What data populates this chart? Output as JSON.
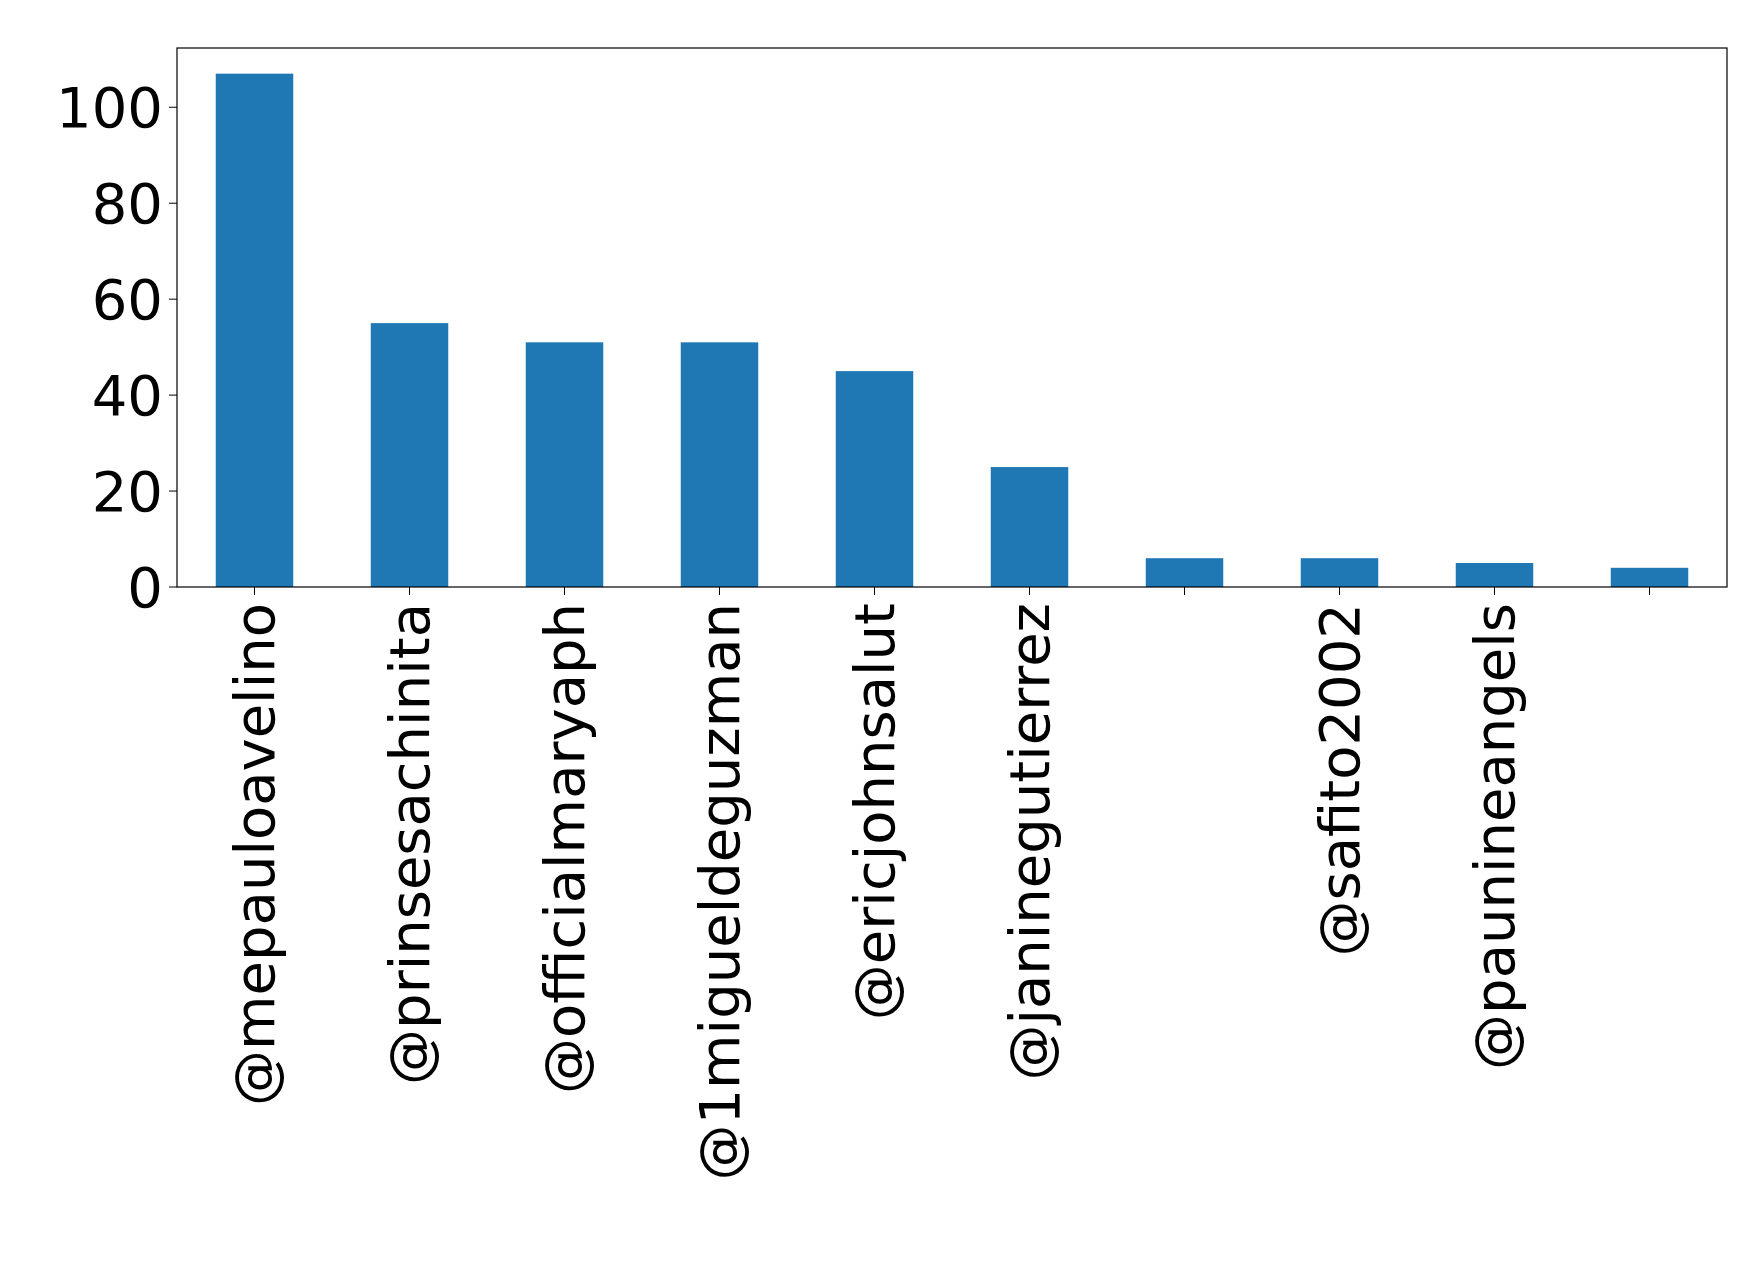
{
  "chart_data": {
    "type": "bar",
    "categories": [
      "@mepauloavelino",
      "@prinsesachinita",
      "@officialmaryaph",
      "@1migueldeguzman",
      "@ericjohnsalut",
      "@janinegutierrez",
      null,
      "@safito2002",
      "@paunineangels",
      null
    ],
    "values": [
      107,
      55,
      51,
      51,
      45,
      25,
      6,
      6,
      5,
      4
    ],
    "color": "#1f77b4",
    "ylim": [
      0,
      112.35
    ],
    "yticks": [
      0,
      20,
      40,
      60,
      80,
      100
    ],
    "grid": false
  }
}
